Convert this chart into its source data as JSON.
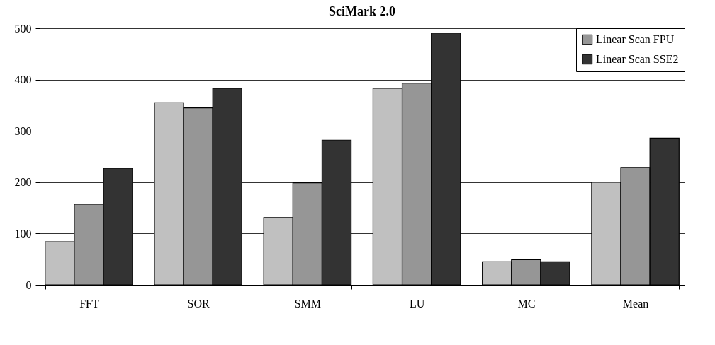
{
  "chart_data": {
    "type": "bar",
    "title": "SciMark 2.0",
    "categories": [
      "FFT",
      "SOR",
      "SMM",
      "LU",
      "MC",
      "Mean"
    ],
    "series": [
      {
        "color": "#c0c0c0",
        "values": [
          84,
          355,
          131,
          383,
          45,
          200
        ]
      },
      {
        "name": "Linear Scan FPU",
        "color": "#969696",
        "values": [
          157,
          345,
          199,
          393,
          49,
          229
        ]
      },
      {
        "name": "Linear Scan SSE2",
        "color": "#333333",
        "values": [
          227,
          383,
          282,
          491,
          45,
          286
        ]
      }
    ],
    "ylim": [
      0,
      500
    ],
    "yticks": [
      0,
      100,
      200,
      300,
      400,
      500
    ],
    "grid": "y",
    "legend": "top right"
  }
}
